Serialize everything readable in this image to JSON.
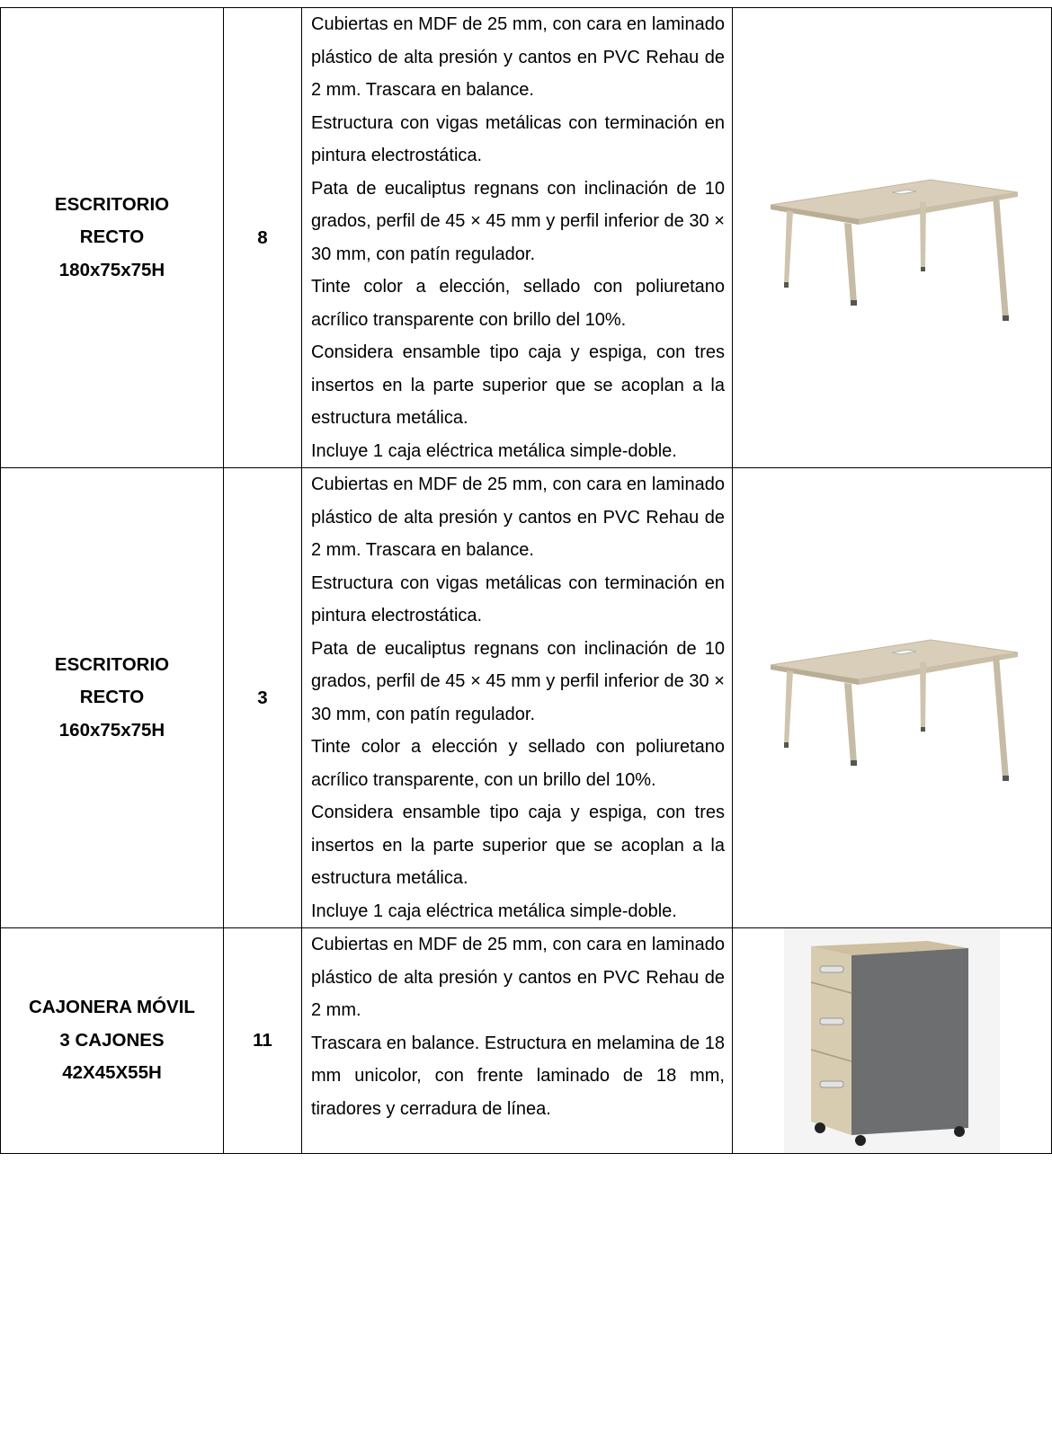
{
  "table": {
    "rows": [
      {
        "name_lines": [
          "ESCRITORIO",
          "RECTO",
          "180x75x75H"
        ],
        "quantity": 8,
        "description": [
          "Cubiertas en MDF de 25 mm, con cara en laminado plástico de alta presión y cantos en PVC Rehau de 2 mm. Trascara en balance.",
          "Estructura con vigas metálicas con terminación en pintura electrostática.",
          "Pata de eucaliptus regnans con inclinación de 10 grados, perfil de 45 × 45 mm y perfil inferior de 30 × 30 mm, con patín regulador.",
          "Tinte color a elección, sellado con poliuretano acrílico transparente con brillo del 10%.",
          "Considera ensamble tipo caja y espiga, con tres insertos en la parte superior que se acoplan a la estructura metálica.",
          "Incluye 1 caja eléctrica metálica simple-doble."
        ]
      },
      {
        "name_lines": [
          "ESCRITORIO",
          "RECTO",
          "160x75x75H"
        ],
        "quantity": 3,
        "description": [
          "Cubiertas en MDF de 25 mm, con cara en laminado plástico de alta presión y cantos en PVC Rehau de 2 mm. Trascara en balance.",
          "Estructura con vigas metálicas con terminación en pintura electrostática.",
          "Pata de eucaliptus regnans con inclinación de 10 grados, perfil de 45 × 45 mm y perfil inferior de 30 × 30 mm, con patín regulador.",
          "Tinte color a elección y sellado con poliuretano acrílico transparente, con un brillo del 10%.",
          "Considera ensamble tipo caja y espiga, con tres insertos en la parte superior que se acoplan a la estructura metálica.",
          "Incluye 1 caja eléctrica metálica simple-doble."
        ]
      },
      {
        "name_lines": [
          "CAJONERA MÓVIL",
          "3 CAJONES",
          "42X45X55H"
        ],
        "quantity": 11,
        "description": [
          "Cubiertas en MDF de 25 mm, con cara en laminado plástico de alta presión y cantos en PVC Rehau de 2 mm.",
          "Trascara en balance. Estructura en melamina de 18 mm unicolor, con frente laminado de 18 mm, tiradores y cerradura de línea."
        ]
      }
    ]
  }
}
